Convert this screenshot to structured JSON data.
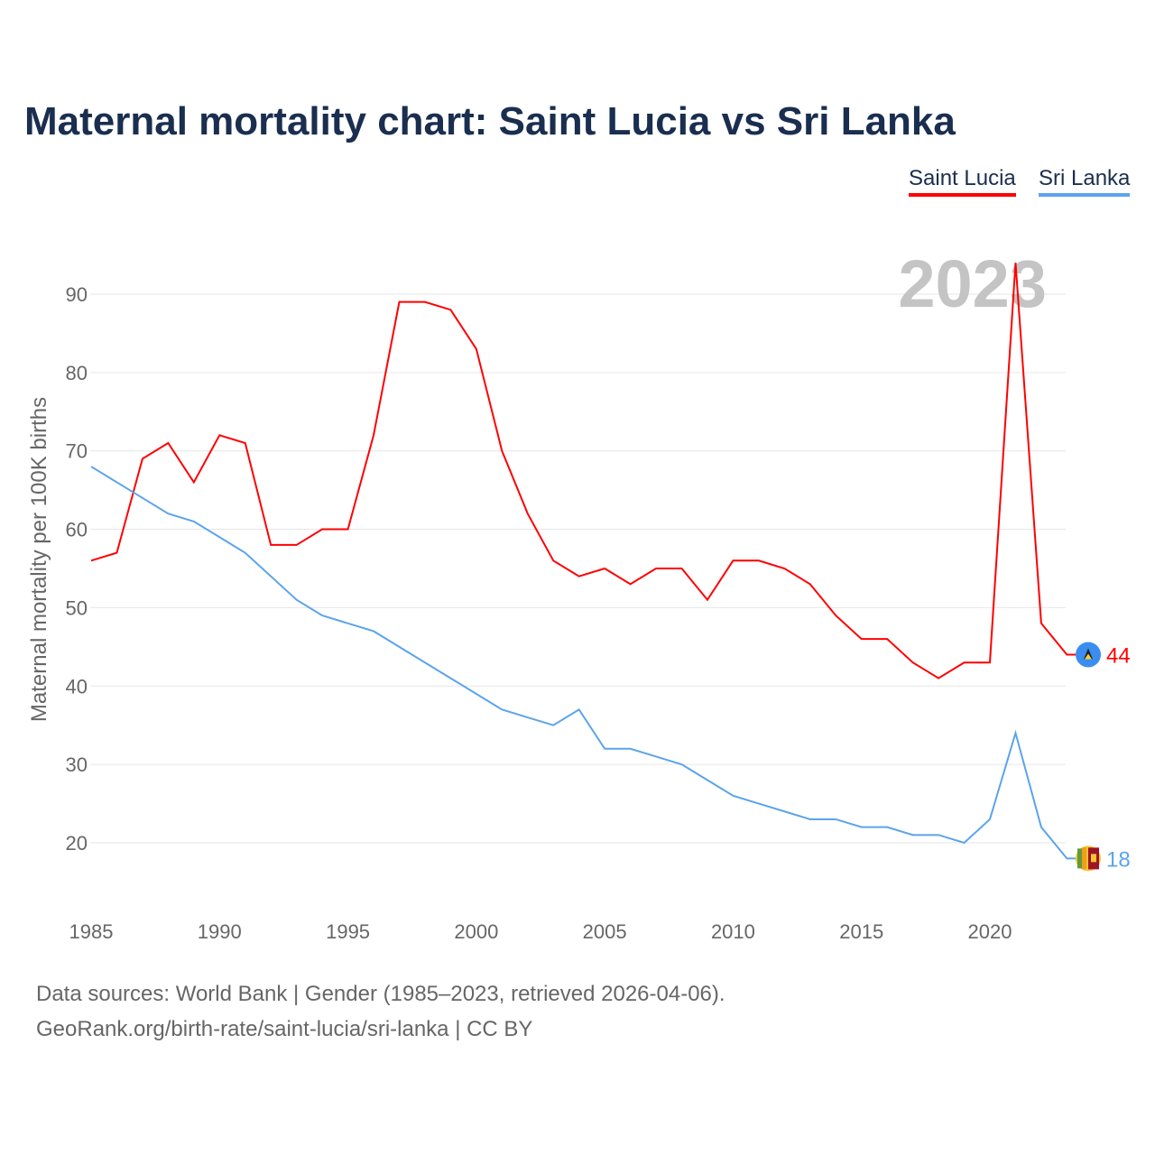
{
  "chart_data": {
    "type": "line",
    "title": "Maternal mortality chart: Saint Lucia vs Sri Lanka",
    "xlabel": "",
    "ylabel": "Maternal mortality per 100K births",
    "year_label": "2023",
    "x": [
      1985,
      1986,
      1987,
      1988,
      1989,
      1990,
      1991,
      1992,
      1993,
      1994,
      1995,
      1996,
      1997,
      1998,
      1999,
      2000,
      2001,
      2002,
      2003,
      2004,
      2005,
      2006,
      2007,
      2008,
      2009,
      2010,
      2011,
      2012,
      2013,
      2014,
      2015,
      2016,
      2017,
      2018,
      2019,
      2020,
      2021,
      2022,
      2023
    ],
    "xticks": [
      "1985",
      "1990",
      "1995",
      "2000",
      "2005",
      "2010",
      "2015",
      "2020"
    ],
    "yticks": [
      "20",
      "30",
      "40",
      "50",
      "60",
      "70",
      "80",
      "90"
    ],
    "xlim": [
      1985,
      2023
    ],
    "ylim": [
      13,
      96
    ],
    "grid": true,
    "legend_position": "top-right",
    "series": [
      {
        "name": "Saint Lucia",
        "color": "#ff0000",
        "end_label": "44",
        "values": [
          56,
          57,
          69,
          71,
          66,
          72,
          71,
          58,
          58,
          60,
          60,
          72,
          89,
          89,
          88,
          83,
          70,
          62,
          56,
          54,
          55,
          53,
          55,
          55,
          51,
          56,
          56,
          55,
          53,
          49,
          46,
          46,
          43,
          41,
          43,
          43,
          94,
          48,
          44
        ]
      },
      {
        "name": "Sri Lanka",
        "color": "#5ba4ec",
        "end_label": "18",
        "values": [
          68,
          66,
          64,
          62,
          61,
          59,
          57,
          54,
          51,
          49,
          48,
          47,
          45,
          43,
          41,
          39,
          37,
          36,
          35,
          37,
          32,
          32,
          31,
          30,
          28,
          26,
          25,
          24,
          23,
          23,
          22,
          22,
          21,
          21,
          20,
          23,
          34,
          22,
          18
        ]
      }
    ]
  },
  "footer": {
    "source": "Data sources: World Bank | Gender (1985–2023, retrieved 2026-04-06).",
    "credit": "GeoRank.org/birth-rate/saint-lucia/sri-lanka | CC BY"
  }
}
